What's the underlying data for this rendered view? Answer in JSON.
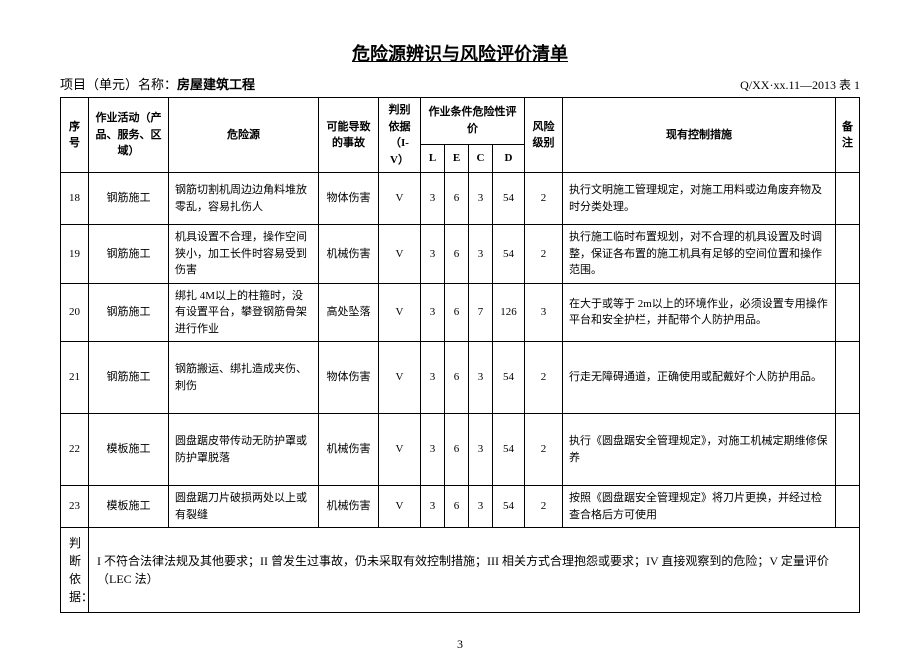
{
  "title": "危险源辨识与风险评价清单",
  "project_label": "项目（单元）名称：",
  "project_name": "房屋建筑工程",
  "doc_code": "Q/XX·xx.11—2013 表 1",
  "columns": {
    "seq": "序号",
    "activity": "作业活动（产品、服务、区域）",
    "source": "危险源",
    "accident": "可能导致的事故",
    "basis": "判别依据（I-V）",
    "cond_header": "作业条件危险性评价",
    "L": "L",
    "E": "E",
    "C": "C",
    "D": "D",
    "risk_level": "风险级别",
    "control": "现有控制措施",
    "note": "备注"
  },
  "rows": [
    {
      "seq": "18",
      "activity": "钢筋施工",
      "source": "钢筋切割机周边边角料堆放零乱，容易扎伤人",
      "accident": "物体伤害",
      "basis": "V",
      "L": "3",
      "E": "6",
      "C": "3",
      "D": "54",
      "risk": "2",
      "control": "执行文明施工管理规定，对施工用料或边角废弃物及时分类处理。",
      "note": ""
    },
    {
      "seq": "19",
      "activity": "钢筋施工",
      "source": "机具设置不合理，操作空间狭小，加工长件时容易受到伤害",
      "accident": "机械伤害",
      "basis": "V",
      "L": "3",
      "E": "6",
      "C": "3",
      "D": "54",
      "risk": "2",
      "control": "执行施工临时布置规划，对不合理的机具设置及时调整，保证各布置的施工机具有足够的空间位置和操作范围。",
      "note": ""
    },
    {
      "seq": "20",
      "activity": "钢筋施工",
      "source": "绑扎 4M以上的柱箍时，没有设置平台，攀登钢筋骨架进行作业",
      "accident": "高处坠落",
      "basis": "V",
      "L": "3",
      "E": "6",
      "C": "7",
      "D": "126",
      "risk": "3",
      "control": "在大于或等于 2m以上的环境作业，必须设置专用操作平台和安全护栏，并配带个人防护用品。",
      "note": ""
    },
    {
      "seq": "21",
      "activity": "钢筋施工",
      "source": "钢筋搬运、绑扎造成夹伤、刺伤",
      "accident": "物体伤害",
      "basis": "V",
      "L": "3",
      "E": "6",
      "C": "3",
      "D": "54",
      "risk": "2",
      "control": "行走无障碍通道，正确使用或配戴好个人防护用品。",
      "note": ""
    },
    {
      "seq": "22",
      "activity": "模板施工",
      "source": "圆盘踞皮带传动无防护罩或防护罩脱落",
      "accident": "机械伤害",
      "basis": "V",
      "L": "3",
      "E": "6",
      "C": "3",
      "D": "54",
      "risk": "2",
      "control": "执行《圆盘踞安全管理规定》，对施工机械定期维修保养",
      "note": ""
    },
    {
      "seq": "23",
      "activity": "模板施工",
      "source": "圆盘踞刀片破损两处以上或有裂缝",
      "accident": "机械伤害",
      "basis": "V",
      "L": "3",
      "E": "6",
      "C": "3",
      "D": "54",
      "risk": "2",
      "control": "按照《圆盘踞安全管理规定》将刀片更换，并经过检查合格后方可使用",
      "note": ""
    }
  ],
  "footnote_label": "判断依据：",
  "footnote_text": "I 不符合法律法规及其他要求；II 曾发生过事故，仍未采取有效控制措施；III 相关方式合理抱怨或要求；IV 直接观察到的危险；V 定量评价（LEC 法）",
  "page_number": "3"
}
